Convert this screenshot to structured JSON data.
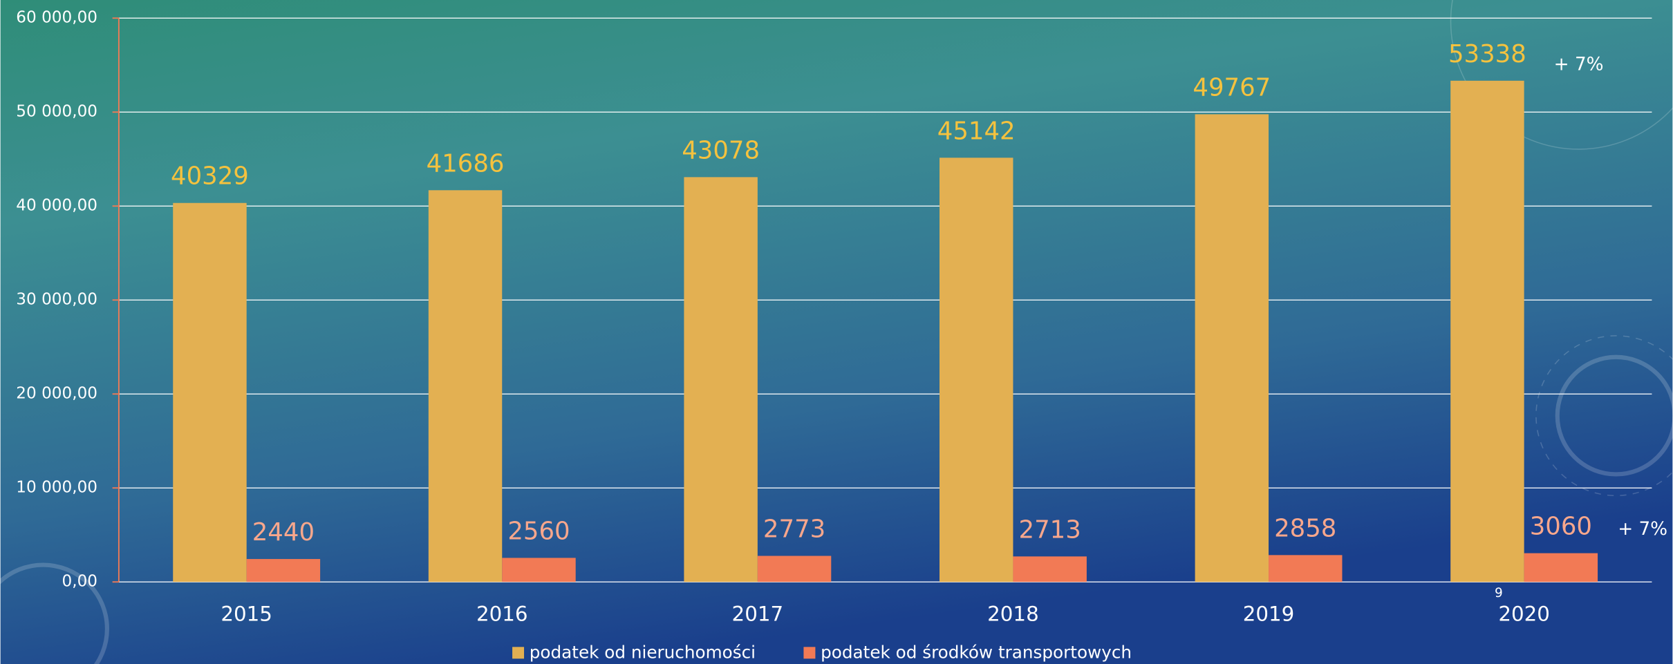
{
  "chart_data": {
    "type": "bar",
    "categories": [
      "2015",
      "2016",
      "2017",
      "2018",
      "2019",
      "2020"
    ],
    "series": [
      {
        "name": "podatek od nieruchomości",
        "color": "#e3b052",
        "values": [
          40329,
          41686,
          43078,
          45142,
          49767,
          53338
        ]
      },
      {
        "name": "podatek od środków transportowych",
        "color": "#f27a55",
        "values": [
          2440,
          2560,
          2773,
          2713,
          2858,
          3060
        ]
      }
    ],
    "ylim": [
      0,
      60000
    ],
    "yticks": [
      {
        "value": 0,
        "label": "0,00"
      },
      {
        "value": 10000,
        "label": "10 000,00"
      },
      {
        "value": 20000,
        "label": "20 000,00"
      },
      {
        "value": 30000,
        "label": "30 000,00"
      },
      {
        "value": 40000,
        "label": "40 000,00"
      },
      {
        "value": 50000,
        "label": "50 000,00"
      },
      {
        "value": 60000,
        "label": "60 000,00"
      }
    ],
    "grid": true,
    "legend": "bottom",
    "annotations": [
      "+ 7%",
      "+ 7%",
      "9"
    ]
  }
}
